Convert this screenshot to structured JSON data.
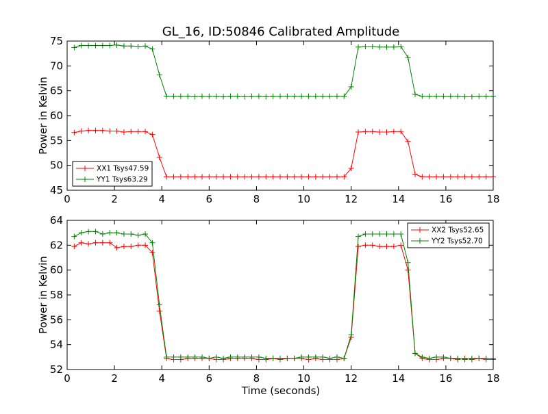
{
  "chart_data": [
    {
      "type": "line",
      "title": "GL_16, ID:50846 Calibrated Amplitude",
      "xlabel": "",
      "ylabel": "Power in Kelvin",
      "xlim": [
        0,
        18
      ],
      "ylim": [
        45,
        75
      ],
      "xticks": [
        "0",
        "2",
        "4",
        "6",
        "8",
        "10",
        "12",
        "14",
        "16",
        "18"
      ],
      "yticks": [
        "45",
        "50",
        "55",
        "60",
        "65",
        "70",
        "75"
      ],
      "grid": false,
      "legend_position": "lower-left",
      "x": [
        0.3,
        0.6,
        0.9,
        1.2,
        1.5,
        1.8,
        2.1,
        2.4,
        2.7,
        3.0,
        3.3,
        3.6,
        3.9,
        4.2,
        4.5,
        4.8,
        5.1,
        5.4,
        5.7,
        6.0,
        6.3,
        6.6,
        6.9,
        7.2,
        7.5,
        7.8,
        8.1,
        8.4,
        8.7,
        9.0,
        9.3,
        9.6,
        9.9,
        10.2,
        10.5,
        10.8,
        11.1,
        11.4,
        11.7,
        12.0,
        12.3,
        12.6,
        12.9,
        13.2,
        13.5,
        13.8,
        14.1,
        14.4,
        14.7,
        15.0,
        15.3,
        15.6,
        15.9,
        16.2,
        16.5,
        16.8,
        17.1,
        17.4,
        17.7,
        18.0
      ],
      "series": [
        {
          "name": "XX1 Tsys47.59",
          "color": "#ff0000",
          "values": [
            56.6,
            56.9,
            57.0,
            57.0,
            57.0,
            56.9,
            56.9,
            56.7,
            56.8,
            56.8,
            56.8,
            56.2,
            51.6,
            47.7,
            47.7,
            47.7,
            47.7,
            47.7,
            47.7,
            47.7,
            47.7,
            47.7,
            47.7,
            47.7,
            47.7,
            47.7,
            47.7,
            47.7,
            47.7,
            47.7,
            47.7,
            47.7,
            47.7,
            47.7,
            47.7,
            47.7,
            47.7,
            47.7,
            47.7,
            49.4,
            56.7,
            56.8,
            56.8,
            56.7,
            56.7,
            56.8,
            56.8,
            54.8,
            48.2,
            47.7,
            47.7,
            47.7,
            47.7,
            47.7,
            47.7,
            47.7,
            47.7,
            47.7,
            47.7,
            47.7
          ]
        },
        {
          "name": "YY1 Tsys63.29",
          "color": "#008000",
          "values": [
            73.7,
            74.1,
            74.1,
            74.1,
            74.1,
            74.1,
            74.2,
            74.0,
            74.0,
            73.9,
            74.0,
            73.4,
            68.2,
            63.9,
            63.9,
            63.9,
            63.9,
            63.8,
            63.9,
            63.9,
            63.9,
            63.8,
            63.9,
            63.9,
            63.8,
            63.9,
            63.9,
            63.8,
            63.9,
            63.9,
            63.9,
            63.9,
            63.9,
            63.9,
            63.9,
            63.9,
            63.9,
            63.9,
            63.9,
            65.8,
            73.8,
            73.9,
            73.9,
            73.8,
            73.8,
            73.8,
            73.9,
            71.7,
            64.3,
            63.9,
            63.9,
            63.9,
            63.9,
            63.9,
            63.9,
            63.8,
            63.8,
            63.9,
            63.9,
            63.9
          ]
        }
      ]
    },
    {
      "type": "line",
      "title": "",
      "xlabel": "Time (seconds)",
      "ylabel": "Power in Kelvin",
      "xlim": [
        0,
        18
      ],
      "ylim": [
        52,
        64
      ],
      "xticks": [
        "0",
        "2",
        "4",
        "6",
        "8",
        "10",
        "12",
        "14",
        "16",
        "18"
      ],
      "yticks": [
        "52",
        "54",
        "56",
        "58",
        "60",
        "62",
        "64"
      ],
      "grid": false,
      "legend_position": "upper-right",
      "x": [
        0.3,
        0.6,
        0.9,
        1.2,
        1.5,
        1.8,
        2.1,
        2.4,
        2.7,
        3.0,
        3.3,
        3.6,
        3.9,
        4.2,
        4.5,
        4.8,
        5.1,
        5.4,
        5.7,
        6.0,
        6.3,
        6.6,
        6.9,
        7.2,
        7.5,
        7.8,
        8.1,
        8.4,
        8.7,
        9.0,
        9.3,
        9.6,
        9.9,
        10.2,
        10.5,
        10.8,
        11.1,
        11.4,
        11.7,
        12.0,
        12.3,
        12.6,
        12.9,
        13.2,
        13.5,
        13.8,
        14.1,
        14.4,
        14.7,
        15.0,
        15.3,
        15.6,
        15.9,
        16.2,
        16.5,
        16.8,
        17.1,
        17.4,
        17.7,
        18.0
      ],
      "series": [
        {
          "name": "XX2 Tsys52.65",
          "color": "#ff0000",
          "values": [
            61.9,
            62.2,
            62.1,
            62.2,
            62.2,
            62.2,
            61.8,
            61.9,
            61.9,
            62.0,
            62.0,
            61.4,
            56.7,
            52.9,
            52.8,
            52.8,
            52.9,
            52.9,
            52.9,
            52.9,
            52.8,
            52.8,
            52.9,
            52.9,
            52.9,
            52.9,
            52.8,
            52.8,
            52.9,
            52.8,
            52.9,
            52.9,
            52.9,
            52.8,
            52.9,
            52.8,
            52.8,
            52.8,
            52.9,
            54.6,
            61.9,
            62.0,
            62.0,
            61.9,
            61.9,
            61.9,
            62.0,
            60.0,
            53.3,
            52.9,
            52.8,
            52.8,
            52.9,
            52.9,
            52.8,
            52.9,
            52.8,
            52.9,
            52.8,
            52.8
          ]
        },
        {
          "name": "YY2 Tsys52.70",
          "color": "#008000",
          "values": [
            62.7,
            63.0,
            63.1,
            63.1,
            62.9,
            63.0,
            63.0,
            62.9,
            62.9,
            62.8,
            62.9,
            62.2,
            57.2,
            53.0,
            53.0,
            53.0,
            53.0,
            53.0,
            53.0,
            52.9,
            53.0,
            52.9,
            53.0,
            53.0,
            53.0,
            53.0,
            53.0,
            52.9,
            52.9,
            52.9,
            52.9,
            52.9,
            53.0,
            53.0,
            53.0,
            53.0,
            52.9,
            53.0,
            52.9,
            54.8,
            62.7,
            62.9,
            62.9,
            62.9,
            62.9,
            62.9,
            62.9,
            60.6,
            53.3,
            53.0,
            52.9,
            53.0,
            53.0,
            52.9,
            52.9,
            52.8,
            52.9,
            52.9,
            52.9,
            52.9
          ]
        }
      ]
    }
  ]
}
